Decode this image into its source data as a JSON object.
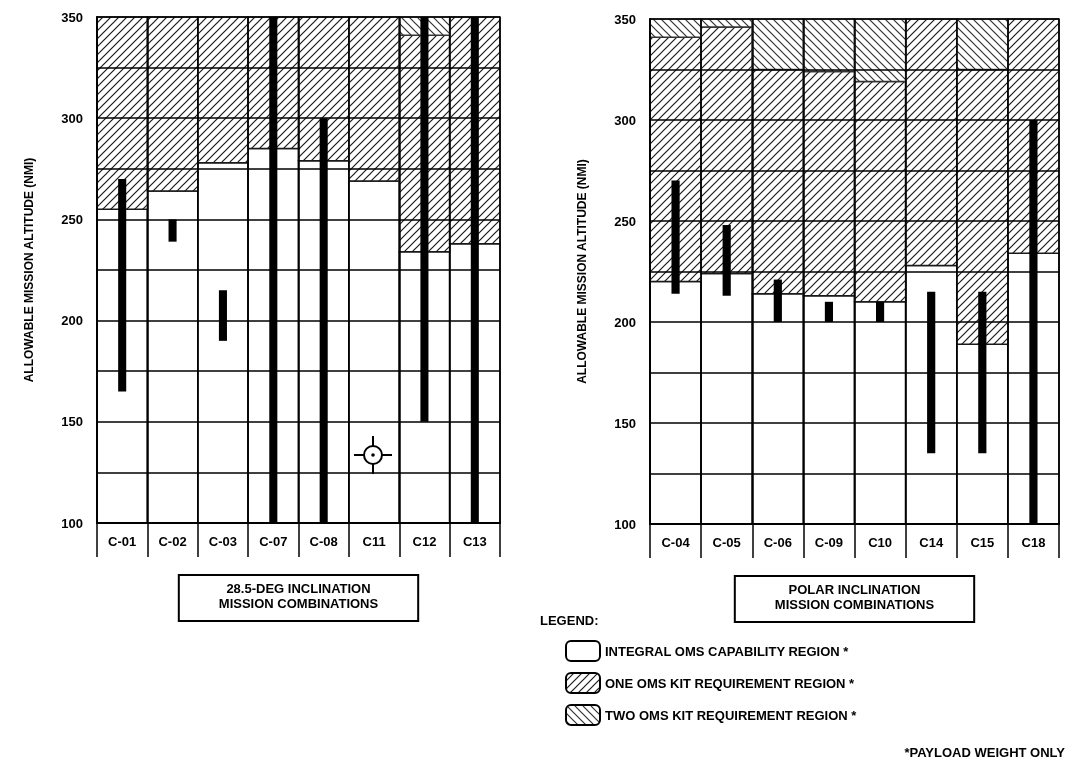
{
  "chart_data": [
    {
      "type": "bar",
      "xlabel": "28.5-DEG INCLINATION\nMISSION COMBINATIONS",
      "ylabel": "ALLOWABLE MISSION ALTITUDE (NMI)",
      "categories": [
        "C-01",
        "C-02",
        "C-03",
        "C-07",
        "C-08",
        "C11",
        "C12",
        "C13"
      ],
      "ylim": [
        100,
        350
      ],
      "yticks": [
        100,
        {
          "value": 125,
          "label": null
        },
        150,
        {
          "value": 175,
          "label": null
        },
        200,
        {
          "value": 225,
          "label": null
        },
        250,
        {
          "value": 275,
          "label": null
        },
        300,
        {
          "value": 325,
          "label": null
        },
        350
      ],
      "grid": true,
      "series": [
        {
          "color": "#ffffff",
          "base": [
            100,
            100,
            100,
            100,
            100,
            100,
            100,
            100
          ],
          "values": [
            155,
            164,
            178,
            185,
            179,
            169,
            134,
            138
          ]
        },
        {
          "color": "#1a1a1a",
          "base": [
            255,
            264,
            278,
            285,
            279,
            269,
            234,
            238
          ],
          "values": [
            95,
            86,
            72,
            65,
            71,
            81,
            107,
            112
          ]
        },
        {
          "color": "#333333",
          "base": [
            null,
            null,
            null,
            null,
            null,
            null,
            341,
            null
          ],
          "values": [
            null,
            null,
            null,
            null,
            null,
            null,
            9,
            null
          ]
        },
        {
          "color": "#000000",
          "base": [
            165,
            239,
            190,
            100,
            100,
            null,
            150,
            100
          ],
          "values": [
            105,
            11,
            25,
            250,
            200,
            null,
            200,
            250
          ]
        }
      ]
    },
    {
      "type": "bar",
      "xlabel": "POLAR INCLINATION\nMISSION COMBINATIONS",
      "ylabel": "ALLOWABLE MISSION ALTITUDE (NMI)",
      "categories": [
        "C-04",
        "C-05",
        "C-06",
        "C-09",
        "C10",
        "C14",
        "C15",
        "C18"
      ],
      "ylim": [
        100,
        350
      ],
      "yticks": [
        100,
        {
          "value": 125,
          "label": null
        },
        150,
        {
          "value": 175,
          "label": null
        },
        200,
        {
          "value": 225,
          "label": null
        },
        250,
        {
          "value": 275,
          "label": null
        },
        300,
        {
          "value": 325,
          "label": null
        },
        350
      ],
      "grid": true,
      "legend": "bottom left",
      "legend_title": "LEGEND:",
      "annotations": [
        "*PAYLOAD WEIGHT ONLY"
      ],
      "series": [
        {
          "name": "INTEGRAL OMS CAPABILITY REGION *",
          "color": "#ffffff",
          "base": [
            100,
            100,
            100,
            100,
            100,
            100,
            100,
            100
          ],
          "values": [
            120,
            124,
            114,
            113,
            110,
            128,
            89,
            134
          ]
        },
        {
          "name": "ONE OMS KIT REQUIREMENT REGION *",
          "color": "#1a1a1a",
          "base": [
            220,
            224,
            214,
            213,
            210,
            228,
            189,
            234
          ],
          "values": [
            121,
            122,
            111,
            111,
            109,
            122,
            136,
            116
          ]
        },
        {
          "name": "TWO OMS KIT REQUIREMENT REGION *",
          "color": "#333333",
          "base": [
            341,
            346,
            325,
            324,
            319,
            null,
            325,
            null
          ],
          "values": [
            9,
            4,
            25,
            26,
            31,
            null,
            25,
            null
          ]
        },
        {
          "color": "#000000",
          "base": [
            214,
            213,
            200,
            200,
            200,
            135,
            135,
            100
          ],
          "values": [
            56,
            35,
            21,
            10,
            10,
            80,
            80,
            200
          ]
        }
      ]
    }
  ]
}
